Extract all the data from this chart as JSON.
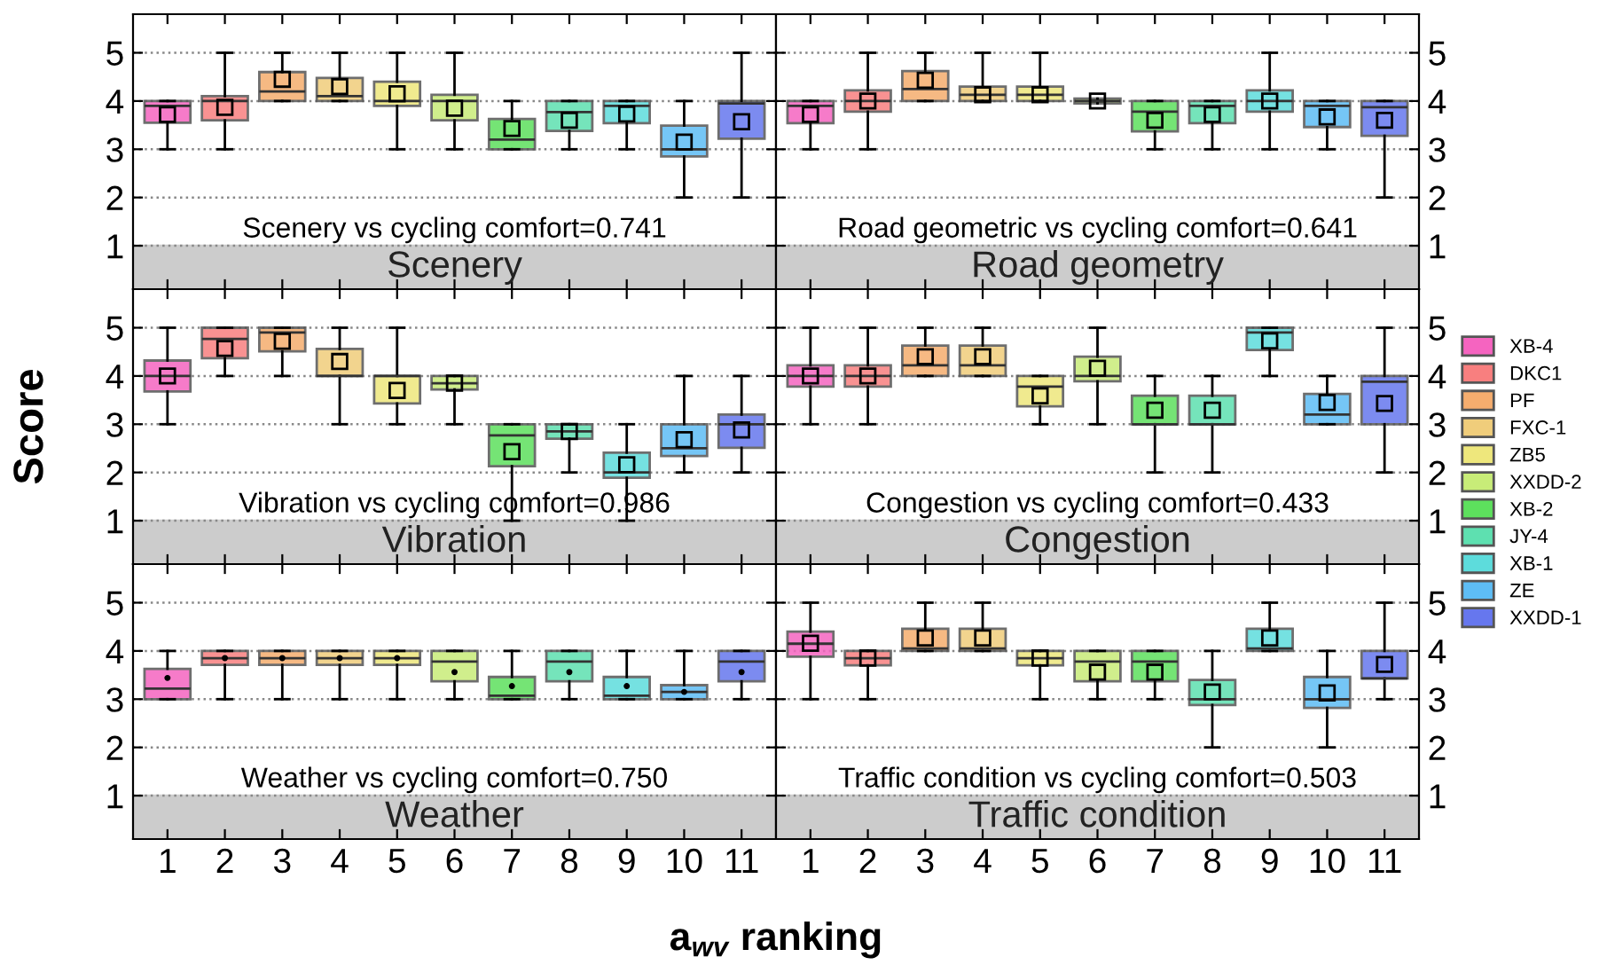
{
  "chart_data": [
    {
      "type": "box",
      "categories": [
        "1",
        "2",
        "3",
        "4",
        "5",
        "6",
        "7",
        "8",
        "9",
        "10",
        "11"
      ],
      "ylim": [
        0.1,
        5.8
      ],
      "yticks": [
        1,
        2,
        3,
        4,
        5
      ],
      "grid": "y",
      "tick_labels": "y",
      "marker": "square",
      "colors": [
        "#f564c0",
        "#f87f7f",
        "#f5ad6e",
        "#f0cd7b",
        "#eee77c",
        "#c8ec78",
        "#5de05d",
        "#5ee0b0",
        "#5ddcdc",
        "#5ebdf5",
        "#6677ee"
      ],
      "bands": [
        {
          "axis": "y",
          "from": 0.1,
          "to": 1,
          "label": "Scenery",
          "color": "#cccccc"
        }
      ],
      "annotations": [
        "Scenery vs cycling comfort=0.741"
      ],
      "boxes": [
        {
          "low": 3,
          "q1": 3.55,
          "median": 3.9,
          "q3": 4,
          "high": 4,
          "mean": 3.72
        },
        {
          "low": 3,
          "q1": 3.6,
          "median": 4,
          "q3": 4.1,
          "high": 5,
          "mean": 3.87
        },
        {
          "low": 4,
          "q1": 4,
          "median": 4.2,
          "q3": 4.6,
          "high": 5,
          "mean": 4.45
        },
        {
          "low": 4,
          "q1": 4,
          "median": 4.1,
          "q3": 4.48,
          "high": 5,
          "mean": 4.3
        },
        {
          "low": 3,
          "q1": 3.9,
          "median": 4,
          "q3": 4.4,
          "high": 5,
          "mean": 4.15
        },
        {
          "low": 3,
          "q1": 3.6,
          "median": 4,
          "q3": 4.13,
          "high": 5,
          "mean": 3.85
        },
        {
          "low": 3,
          "q1": 3,
          "median": 3.2,
          "q3": 3.63,
          "high": 4,
          "mean": 3.43
        },
        {
          "low": 3,
          "q1": 3.38,
          "median": 3.77,
          "q3": 4,
          "high": 4,
          "mean": 3.6
        },
        {
          "low": 3,
          "q1": 3.54,
          "median": 3.9,
          "q3": 4,
          "high": 4,
          "mean": 3.73
        },
        {
          "low": 2,
          "q1": 2.85,
          "median": 3,
          "q3": 3.49,
          "high": 4,
          "mean": 3.15
        },
        {
          "low": 2,
          "q1": 3.22,
          "median": 3.95,
          "q3": 4,
          "high": 5,
          "mean": 3.57
        }
      ]
    },
    {
      "type": "box",
      "categories": [
        "1",
        "2",
        "3",
        "4",
        "5",
        "6",
        "7",
        "8",
        "9",
        "10",
        "11"
      ],
      "ylim": [
        0.1,
        5.8
      ],
      "yticks": [
        1,
        2,
        3,
        4,
        5
      ],
      "grid": "y",
      "tick_labels": "y",
      "marker": "square",
      "colors": [
        "#f564c0",
        "#f87f7f",
        "#f5ad6e",
        "#f0cd7b",
        "#eee77c",
        "#c8ec78",
        "#5de05d",
        "#5ee0b0",
        "#5ddcdc",
        "#5ebdf5",
        "#6677ee"
      ],
      "bands": [
        {
          "axis": "y",
          "from": 0.1,
          "to": 1,
          "label": "Road geometry",
          "color": "#cccccc"
        }
      ],
      "annotations": [
        "Road geometric vs cycling comfort=0.641"
      ],
      "boxes": [
        {
          "low": 3,
          "q1": 3.54,
          "median": 3.9,
          "q3": 4,
          "high": 4,
          "mean": 3.72
        },
        {
          "low": 3,
          "q1": 3.78,
          "median": 4,
          "q3": 4.22,
          "high": 5,
          "mean": 4
        },
        {
          "low": 4,
          "q1": 4,
          "median": 4.25,
          "q3": 4.62,
          "high": 5,
          "mean": 4.43
        },
        {
          "low": 4,
          "q1": 4,
          "median": 4.13,
          "q3": 4.3,
          "high": 5,
          "mean": 4.13
        },
        {
          "low": 4,
          "q1": 4,
          "median": 4.13,
          "q3": 4.3,
          "high": 5,
          "mean": 4.13
        },
        {
          "low": 4,
          "q1": 3.95,
          "median": 4,
          "q3": 4.05,
          "high": 4,
          "mean": 4
        },
        {
          "low": 3,
          "q1": 3.37,
          "median": 3.78,
          "q3": 4,
          "high": 4,
          "mean": 3.6
        },
        {
          "low": 3,
          "q1": 3.54,
          "median": 3.9,
          "q3": 4,
          "high": 4,
          "mean": 3.72
        },
        {
          "low": 3,
          "q1": 3.78,
          "median": 4,
          "q3": 4.22,
          "high": 5,
          "mean": 4
        },
        {
          "low": 3,
          "q1": 3.46,
          "median": 3.9,
          "q3": 4,
          "high": 4,
          "mean": 3.67
        },
        {
          "low": 2,
          "q1": 3.28,
          "median": 3.87,
          "q3": 4,
          "high": 4,
          "mean": 3.6
        }
      ]
    },
    {
      "type": "box",
      "categories": [
        "1",
        "2",
        "3",
        "4",
        "5",
        "6",
        "7",
        "8",
        "9",
        "10",
        "11"
      ],
      "ylim": [
        0.1,
        5.8
      ],
      "yticks": [
        1,
        2,
        3,
        4,
        5
      ],
      "grid": "y",
      "tick_labels": "y",
      "marker": "square",
      "ylabel": "Score",
      "colors": [
        "#f564c0",
        "#f87f7f",
        "#f5ad6e",
        "#f0cd7b",
        "#eee77c",
        "#c8ec78",
        "#5de05d",
        "#5ee0b0",
        "#5ddcdc",
        "#5ebdf5",
        "#6677ee"
      ],
      "bands": [
        {
          "axis": "y",
          "from": 0.1,
          "to": 1,
          "label": "Vibration",
          "color": "#cccccc"
        }
      ],
      "annotations": [
        "Vibration vs cycling comfort=0.986"
      ],
      "boxes": [
        {
          "low": 3,
          "q1": 3.68,
          "median": 4,
          "q3": 4.32,
          "high": 5,
          "mean": 4
        },
        {
          "low": 4,
          "q1": 4.37,
          "median": 4.77,
          "q3": 5,
          "high": 5,
          "mean": 4.57
        },
        {
          "low": 4,
          "q1": 4.51,
          "median": 4.9,
          "q3": 5,
          "high": 5,
          "mean": 4.72
        },
        {
          "low": 3,
          "q1": 4,
          "median": 4,
          "q3": 4.56,
          "high": 5,
          "mean": 4.3
        },
        {
          "low": 3,
          "q1": 3.43,
          "median": 4,
          "q3": 4,
          "high": 5,
          "mean": 3.7
        },
        {
          "low": 3,
          "q1": 3.72,
          "median": 3.85,
          "q3": 4,
          "high": 4,
          "mean": 3.85
        },
        {
          "low": 1,
          "q1": 2.13,
          "median": 2.77,
          "q3": 3,
          "high": 3,
          "mean": 2.43
        },
        {
          "low": 2,
          "q1": 2.7,
          "median": 2.85,
          "q3": 3,
          "high": 3,
          "mean": 2.85
        },
        {
          "low": 1,
          "q1": 1.89,
          "median": 2,
          "q3": 2.41,
          "high": 3,
          "mean": 2.16
        },
        {
          "low": 2,
          "q1": 2.34,
          "median": 2.5,
          "q3": 3,
          "high": 4,
          "mean": 2.68
        },
        {
          "low": 2,
          "q1": 2.51,
          "median": 3,
          "q3": 3.2,
          "high": 4,
          "mean": 2.88
        }
      ]
    },
    {
      "type": "box",
      "categories": [
        "1",
        "2",
        "3",
        "4",
        "5",
        "6",
        "7",
        "8",
        "9",
        "10",
        "11"
      ],
      "ylim": [
        0.1,
        5.8
      ],
      "yticks": [
        1,
        2,
        3,
        4,
        5
      ],
      "grid": "y",
      "tick_labels": "y",
      "marker": "square",
      "legend": "right",
      "bands": [
        {
          "axis": "y",
          "from": 0.1,
          "to": 1,
          "label": "Congestion",
          "color": "#cccccc"
        }
      ],
      "annotations": [
        "Congestion vs cycling comfort=0.433"
      ],
      "series": [
        {
          "name": "XB-4",
          "color": "#f564c0",
          "boxes": [
            {
              "low": 3,
              "q1": 3.78,
              "median": 4,
              "q3": 4.22,
              "high": 5,
              "mean": 4
            },
            null,
            null,
            null,
            null,
            null,
            null,
            null,
            null,
            null,
            null
          ]
        },
        {
          "name": "DKC1",
          "color": "#f87f7f",
          "boxes": [
            null,
            {
              "low": 3,
              "q1": 3.78,
              "median": 4,
              "q3": 4.22,
              "high": 5,
              "mean": 4
            },
            null,
            null,
            null,
            null,
            null,
            null,
            null,
            null,
            null
          ]
        },
        {
          "name": "PF",
          "color": "#f5ad6e",
          "boxes": [
            null,
            null,
            {
              "low": 4,
              "q1": 4,
              "median": 4.22,
              "q3": 4.63,
              "high": 5,
              "mean": 4.4
            },
            null,
            null,
            null,
            null,
            null,
            null,
            null,
            null
          ]
        },
        {
          "name": "FXC-1",
          "color": "#f0cd7b",
          "boxes": [
            null,
            null,
            null,
            {
              "low": 4,
              "q1": 4,
              "median": 4.22,
              "q3": 4.63,
              "high": 5,
              "mean": 4.4
            },
            null,
            null,
            null,
            null,
            null,
            null,
            null
          ]
        },
        {
          "name": "ZB5",
          "color": "#eee77c",
          "boxes": [
            null,
            null,
            null,
            null,
            {
              "low": 3,
              "q1": 3.37,
              "median": 3.78,
              "q3": 4,
              "high": 4,
              "mean": 3.59
            },
            null,
            null,
            null,
            null,
            null,
            null
          ]
        },
        {
          "name": "XXDD-2",
          "color": "#c8ec78",
          "boxes": [
            null,
            null,
            null,
            null,
            null,
            {
              "low": 3,
              "q1": 3.89,
              "median": 4,
              "q3": 4.4,
              "high": 5,
              "mean": 4.16
            },
            null,
            null,
            null,
            null,
            null
          ]
        },
        {
          "name": "XB-2",
          "color": "#5de05d",
          "boxes": [
            null,
            null,
            null,
            null,
            null,
            null,
            {
              "low": 2,
              "q1": 3,
              "median": 3,
              "q3": 3.59,
              "high": 4,
              "mean": 3.29
            },
            null,
            null,
            null,
            null
          ]
        },
        {
          "name": "JY-4",
          "color": "#5ee0b0",
          "boxes": [
            null,
            null,
            null,
            null,
            null,
            null,
            null,
            {
              "low": 2,
              "q1": 3,
              "median": 3,
              "q3": 3.59,
              "high": 4,
              "mean": 3.29
            },
            null,
            null,
            null
          ]
        },
        {
          "name": "XB-1",
          "color": "#5ddcdc",
          "boxes": [
            null,
            null,
            null,
            null,
            null,
            null,
            null,
            null,
            {
              "low": 4,
              "q1": 4.54,
              "median": 4.9,
              "q3": 5,
              "high": 5,
              "mean": 4.73
            },
            null,
            null
          ]
        },
        {
          "name": "ZE",
          "color": "#5ebdf5",
          "boxes": [
            null,
            null,
            null,
            null,
            null,
            null,
            null,
            null,
            null,
            {
              "low": 3,
              "q1": 3,
              "median": 3.2,
              "q3": 3.63,
              "high": 4,
              "mean": 3.45
            },
            null
          ]
        },
        {
          "name": "XXDD-1",
          "color": "#6677ee",
          "boxes": [
            null,
            null,
            null,
            null,
            null,
            null,
            null,
            null,
            null,
            null,
            {
              "low": 2,
              "q1": 3,
              "median": 3.88,
              "q3": 4,
              "high": 5,
              "mean": 3.43
            }
          ]
        }
      ]
    },
    {
      "type": "box",
      "categories": [
        "1",
        "2",
        "3",
        "4",
        "5",
        "6",
        "7",
        "8",
        "9",
        "10",
        "11"
      ],
      "ylim": [
        0.1,
        5.8
      ],
      "yticks": [
        1,
        2,
        3,
        4,
        5
      ],
      "grid": "y",
      "marker": "circle",
      "xlabel": "a$_{wv}$ ranking",
      "colors": [
        "#f564c0",
        "#f87f7f",
        "#f5ad6e",
        "#f0cd7b",
        "#eee77c",
        "#c8ec78",
        "#5de05d",
        "#5ee0b0",
        "#5ddcdc",
        "#5ebdf5",
        "#6677ee"
      ],
      "bands": [
        {
          "axis": "y",
          "from": 0.1,
          "to": 1,
          "label": "Weather",
          "color": "#cccccc"
        }
      ],
      "annotations": [
        "Weather vs cycling comfort=0.750"
      ],
      "boxes": [
        {
          "low": 3,
          "q1": 3,
          "median": 3.22,
          "q3": 3.63,
          "high": 4,
          "mean": 3.44
        },
        {
          "low": 3,
          "q1": 3.71,
          "median": 3.85,
          "q3": 4,
          "high": 4,
          "mean": 3.85
        },
        {
          "low": 3,
          "q1": 3.71,
          "median": 3.85,
          "q3": 4,
          "high": 4,
          "mean": 3.85
        },
        {
          "low": 3,
          "q1": 3.71,
          "median": 3.85,
          "q3": 4,
          "high": 4,
          "mean": 3.85
        },
        {
          "low": 3,
          "q1": 3.71,
          "median": 3.85,
          "q3": 4,
          "high": 4,
          "mean": 3.85
        },
        {
          "low": 3,
          "q1": 3.37,
          "median": 3.78,
          "q3": 4,
          "high": 4,
          "mean": 3.56
        },
        {
          "low": 3,
          "q1": 3,
          "median": 3.07,
          "q3": 3.46,
          "high": 4,
          "mean": 3.27
        },
        {
          "low": 3,
          "q1": 3.37,
          "median": 3.78,
          "q3": 4,
          "high": 4,
          "mean": 3.56
        },
        {
          "low": 3,
          "q1": 3,
          "median": 3.07,
          "q3": 3.46,
          "high": 4,
          "mean": 3.27
        },
        {
          "low": 3,
          "q1": 3,
          "median": 3.15,
          "q3": 3.29,
          "high": 4,
          "mean": 3.15
        },
        {
          "low": 3,
          "q1": 3.37,
          "median": 3.78,
          "q3": 4,
          "high": 4,
          "mean": 3.56
        }
      ]
    },
    {
      "type": "box",
      "categories": [
        "1",
        "2",
        "3",
        "4",
        "5",
        "6",
        "7",
        "8",
        "9",
        "10",
        "11"
      ],
      "ylim": [
        0.1,
        5.8
      ],
      "yticks": [
        1,
        2,
        3,
        4,
        5
      ],
      "grid": "y",
      "marker": "square",
      "colors": [
        "#f564c0",
        "#f87f7f",
        "#f5ad6e",
        "#f0cd7b",
        "#eee77c",
        "#c8ec78",
        "#5de05d",
        "#5ee0b0",
        "#5ddcdc",
        "#5ebdf5",
        "#6677ee"
      ],
      "bands": [
        {
          "axis": "y",
          "from": 0.1,
          "to": 1,
          "label": "Traffic condition",
          "color": "#cccccc"
        }
      ],
      "annotations": [
        "Traffic condition vs cycling comfort=0.503"
      ],
      "boxes": [
        {
          "low": 3,
          "q1": 3.88,
          "median": 4.15,
          "q3": 4.4,
          "high": 5,
          "mean": 4.16
        },
        {
          "low": 3,
          "q1": 3.7,
          "median": 3.85,
          "q3": 4,
          "high": 4,
          "mean": 3.85
        },
        {
          "low": 4,
          "q1": 4,
          "median": 4.05,
          "q3": 4.46,
          "high": 5,
          "mean": 4.27
        },
        {
          "low": 4,
          "q1": 4,
          "median": 4.05,
          "q3": 4.46,
          "high": 5,
          "mean": 4.27
        },
        {
          "low": 3,
          "q1": 3.7,
          "median": 3.85,
          "q3": 4,
          "high": 4,
          "mean": 3.85
        },
        {
          "low": 3,
          "q1": 3.37,
          "median": 3.78,
          "q3": 4,
          "high": 4,
          "mean": 3.56
        },
        {
          "low": 3,
          "q1": 3.37,
          "median": 3.78,
          "q3": 4,
          "high": 4,
          "mean": 3.56
        },
        {
          "low": 2,
          "q1": 2.88,
          "median": 3,
          "q3": 3.4,
          "high": 4,
          "mean": 3.15
        },
        {
          "low": 4,
          "q1": 4,
          "median": 4.05,
          "q3": 4.46,
          "high": 5,
          "mean": 4.27
        },
        {
          "low": 2,
          "q1": 2.82,
          "median": 3,
          "q3": 3.46,
          "high": 4,
          "mean": 3.13
        },
        {
          "low": 3,
          "q1": 3.43,
          "median": 3.43,
          "q3": 4,
          "high": 5,
          "mean": 3.72
        }
      ]
    }
  ]
}
